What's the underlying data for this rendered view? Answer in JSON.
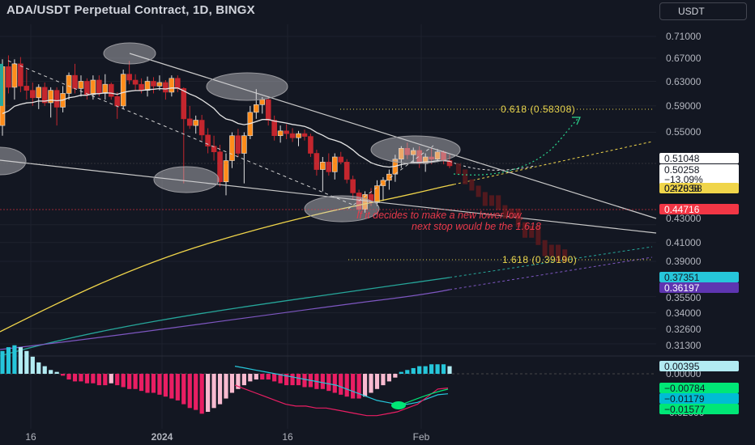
{
  "header": {
    "title": "ADA/USDT Perpetual Contract, 1D, BINGX",
    "currency_button": "USDT"
  },
  "colors": {
    "background": "#131722",
    "up": "#ff8c1a",
    "down": "#c4262e",
    "grid": "#1e222d",
    "axis_text": "#b2b5be",
    "ema_yellow": "#f0d54a",
    "ema_teal": "#26a69a",
    "ema_purple": "#7e57c2",
    "fib": "#e8d44d"
  },
  "chart_data": [
    {
      "type": "candlestick",
      "title": "ADA/USDT Perpetual Contract, 1D, BINGX",
      "price_axis_ticks": [
        "0.71000",
        "0.67000",
        "0.63000",
        "0.59000",
        "0.55000",
        "0.51048",
        "0.50258",
        "0.47838",
        "0.44716",
        "0.43000",
        "0.41000",
        "0.39000",
        "0.37351",
        "0.36197",
        "0.35500",
        "0.34000",
        "0.32600",
        "0.31300"
      ],
      "price_axis_plain_ticks": [
        "0.71000",
        "0.67000",
        "0.63000",
        "0.59000",
        "0.55000",
        "0.43000",
        "0.41000",
        "0.39000",
        "0.35500",
        "0.34000",
        "0.32600",
        "0.31300"
      ],
      "time_axis_ticks": [
        "16",
        "2024",
        "16",
        "Feb"
      ],
      "ylim": [
        0.305,
        0.73
      ],
      "grid": true,
      "candles": [
        {
          "o": 0.56,
          "h": 0.668,
          "l": 0.545,
          "c": 0.655
        },
        {
          "o": 0.655,
          "h": 0.675,
          "l": 0.61,
          "c": 0.62
        },
        {
          "o": 0.62,
          "h": 0.668,
          "l": 0.6,
          "c": 0.66
        },
        {
          "o": 0.66,
          "h": 0.672,
          "l": 0.612,
          "c": 0.622
        },
        {
          "o": 0.622,
          "h": 0.65,
          "l": 0.6,
          "c": 0.615
        },
        {
          "o": 0.615,
          "h": 0.628,
          "l": 0.59,
          "c": 0.603
        },
        {
          "o": 0.603,
          "h": 0.625,
          "l": 0.585,
          "c": 0.62
        },
        {
          "o": 0.62,
          "h": 0.628,
          "l": 0.59,
          "c": 0.595
        },
        {
          "o": 0.595,
          "h": 0.62,
          "l": 0.572,
          "c": 0.615
        },
        {
          "o": 0.615,
          "h": 0.62,
          "l": 0.56,
          "c": 0.588
        },
        {
          "o": 0.588,
          "h": 0.622,
          "l": 0.58,
          "c": 0.61
        },
        {
          "o": 0.61,
          "h": 0.645,
          "l": 0.6,
          "c": 0.64
        },
        {
          "o": 0.64,
          "h": 0.66,
          "l": 0.61,
          "c": 0.618
        },
        {
          "o": 0.618,
          "h": 0.64,
          "l": 0.605,
          "c": 0.63
        },
        {
          "o": 0.63,
          "h": 0.635,
          "l": 0.6,
          "c": 0.608
        },
        {
          "o": 0.608,
          "h": 0.64,
          "l": 0.6,
          "c": 0.632
        },
        {
          "o": 0.632,
          "h": 0.64,
          "l": 0.605,
          "c": 0.61
        },
        {
          "o": 0.61,
          "h": 0.642,
          "l": 0.6,
          "c": 0.625
        },
        {
          "o": 0.625,
          "h": 0.628,
          "l": 0.6,
          "c": 0.605
        },
        {
          "o": 0.605,
          "h": 0.612,
          "l": 0.57,
          "c": 0.59
        },
        {
          "o": 0.59,
          "h": 0.65,
          "l": 0.585,
          "c": 0.642
        },
        {
          "o": 0.642,
          "h": 0.665,
          "l": 0.625,
          "c": 0.632
        },
        {
          "o": 0.632,
          "h": 0.642,
          "l": 0.615,
          "c": 0.625
        },
        {
          "o": 0.625,
          "h": 0.635,
          "l": 0.61,
          "c": 0.615
        },
        {
          "o": 0.615,
          "h": 0.638,
          "l": 0.605,
          "c": 0.63
        },
        {
          "o": 0.63,
          "h": 0.637,
          "l": 0.61,
          "c": 0.622
        },
        {
          "o": 0.622,
          "h": 0.64,
          "l": 0.615,
          "c": 0.628
        },
        {
          "o": 0.628,
          "h": 0.632,
          "l": 0.6,
          "c": 0.612
        },
        {
          "o": 0.612,
          "h": 0.64,
          "l": 0.605,
          "c": 0.635
        },
        {
          "o": 0.635,
          "h": 0.64,
          "l": 0.612,
          "c": 0.618
        },
        {
          "o": 0.618,
          "h": 0.62,
          "l": 0.48,
          "c": 0.57
        },
        {
          "o": 0.57,
          "h": 0.59,
          "l": 0.555,
          "c": 0.56
        },
        {
          "o": 0.56,
          "h": 0.575,
          "l": 0.548,
          "c": 0.568
        },
        {
          "o": 0.568,
          "h": 0.576,
          "l": 0.538,
          "c": 0.546
        },
        {
          "o": 0.546,
          "h": 0.556,
          "l": 0.52,
          "c": 0.53
        },
        {
          "o": 0.53,
          "h": 0.545,
          "l": 0.51,
          "c": 0.522
        },
        {
          "o": 0.522,
          "h": 0.532,
          "l": 0.476,
          "c": 0.482
        },
        {
          "o": 0.482,
          "h": 0.52,
          "l": 0.465,
          "c": 0.51
        },
        {
          "o": 0.51,
          "h": 0.55,
          "l": 0.5,
          "c": 0.545
        },
        {
          "o": 0.545,
          "h": 0.555,
          "l": 0.515,
          "c": 0.52
        },
        {
          "o": 0.52,
          "h": 0.55,
          "l": 0.48,
          "c": 0.545
        },
        {
          "o": 0.545,
          "h": 0.59,
          "l": 0.54,
          "c": 0.58
        },
        {
          "o": 0.58,
          "h": 0.617,
          "l": 0.57,
          "c": 0.592
        },
        {
          "o": 0.592,
          "h": 0.604,
          "l": 0.578,
          "c": 0.6
        },
        {
          "o": 0.6,
          "h": 0.605,
          "l": 0.56,
          "c": 0.568
        },
        {
          "o": 0.568,
          "h": 0.575,
          "l": 0.538,
          "c": 0.545
        },
        {
          "o": 0.545,
          "h": 0.56,
          "l": 0.535,
          "c": 0.552
        },
        {
          "o": 0.552,
          "h": 0.562,
          "l": 0.54,
          "c": 0.548
        },
        {
          "o": 0.548,
          "h": 0.556,
          "l": 0.536,
          "c": 0.542
        },
        {
          "o": 0.542,
          "h": 0.552,
          "l": 0.53,
          "c": 0.548
        },
        {
          "o": 0.548,
          "h": 0.554,
          "l": 0.538,
          "c": 0.544
        },
        {
          "o": 0.544,
          "h": 0.548,
          "l": 0.515,
          "c": 0.52
        },
        {
          "o": 0.52,
          "h": 0.525,
          "l": 0.49,
          "c": 0.498
        },
        {
          "o": 0.498,
          "h": 0.515,
          "l": 0.47,
          "c": 0.508
        },
        {
          "o": 0.508,
          "h": 0.52,
          "l": 0.49,
          "c": 0.495
        },
        {
          "o": 0.495,
          "h": 0.52,
          "l": 0.485,
          "c": 0.515
        },
        {
          "o": 0.515,
          "h": 0.522,
          "l": 0.505,
          "c": 0.508
        },
        {
          "o": 0.508,
          "h": 0.512,
          "l": 0.48,
          "c": 0.485
        },
        {
          "o": 0.485,
          "h": 0.49,
          "l": 0.46,
          "c": 0.468
        },
        {
          "o": 0.468,
          "h": 0.472,
          "l": 0.444,
          "c": 0.448
        },
        {
          "o": 0.448,
          "h": 0.47,
          "l": 0.444,
          "c": 0.466
        },
        {
          "o": 0.466,
          "h": 0.474,
          "l": 0.452,
          "c": 0.456
        },
        {
          "o": 0.456,
          "h": 0.484,
          "l": 0.452,
          "c": 0.477
        },
        {
          "o": 0.477,
          "h": 0.488,
          "l": 0.458,
          "c": 0.484
        },
        {
          "o": 0.484,
          "h": 0.498,
          "l": 0.472,
          "c": 0.492
        },
        {
          "o": 0.492,
          "h": 0.518,
          "l": 0.482,
          "c": 0.512
        },
        {
          "o": 0.512,
          "h": 0.53,
          "l": 0.5,
          "c": 0.527
        },
        {
          "o": 0.527,
          "h": 0.535,
          "l": 0.512,
          "c": 0.518
        },
        {
          "o": 0.518,
          "h": 0.528,
          "l": 0.508,
          "c": 0.524
        },
        {
          "o": 0.524,
          "h": 0.53,
          "l": 0.5,
          "c": 0.506
        },
        {
          "o": 0.506,
          "h": 0.52,
          "l": 0.495,
          "c": 0.515
        },
        {
          "o": 0.515,
          "h": 0.528,
          "l": 0.505,
          "c": 0.512
        },
        {
          "o": 0.512,
          "h": 0.526,
          "l": 0.508,
          "c": 0.522
        },
        {
          "o": 0.522,
          "h": 0.524,
          "l": 0.505,
          "c": 0.51
        },
        {
          "o": 0.51,
          "h": 0.518,
          "l": 0.5,
          "c": 0.503
        }
      ],
      "projected_path": [
        0.503,
        0.495,
        0.482,
        0.474,
        0.466,
        0.455,
        0.462,
        0.45,
        0.44,
        0.446,
        0.43,
        0.418,
        0.426,
        0.41,
        0.398,
        0.405,
        0.392,
        0.4
      ],
      "labels": {
        "fib_upper": "0.618 (0.58308)",
        "fib_lower": "1.618 (0.39190)",
        "note_line1": "If it decides to make a new lower low,",
        "note_line2": "next stop would be the 1.618"
      },
      "price_badges": [
        {
          "value": "0.51048",
          "bg": "#ffffff",
          "fg": "#131722"
        },
        {
          "value": "0.50258",
          "bg": "#ffffff",
          "fg": "#131722",
          "sub": [
            "−13.09%",
            "02:20:58"
          ]
        },
        {
          "value": "0.47838",
          "bg": "#f0d54a",
          "fg": "#131722"
        },
        {
          "value": "0.44716",
          "bg": "#f23645",
          "fg": "#ffffff"
        },
        {
          "value": "0.37351",
          "bg": "#26c6da",
          "fg": "#131722"
        },
        {
          "value": "0.36197",
          "bg": "#5e35b1",
          "fg": "#ffffff"
        }
      ]
    },
    {
      "type": "bar",
      "title": "MACD",
      "histogram": [
        0.012,
        0.014,
        0.015,
        0.014,
        0.012,
        0.009,
        0.006,
        0.004,
        0.002,
        0.001,
        -0.001,
        -0.003,
        -0.004,
        -0.004,
        -0.005,
        -0.005,
        -0.006,
        -0.006,
        -0.005,
        -0.006,
        -0.007,
        -0.008,
        -0.008,
        -0.009,
        -0.01,
        -0.01,
        -0.011,
        -0.012,
        -0.013,
        -0.014,
        -0.016,
        -0.018,
        -0.019,
        -0.021,
        -0.02,
        -0.018,
        -0.016,
        -0.013,
        -0.01,
        -0.008,
        -0.006,
        -0.004,
        -0.003,
        -0.003,
        -0.003,
        -0.004,
        -0.005,
        -0.006,
        -0.006,
        -0.006,
        -0.007,
        -0.007,
        -0.008,
        -0.008,
        -0.009,
        -0.01,
        -0.011,
        -0.012,
        -0.013,
        -0.013,
        -0.012,
        -0.01,
        -0.008,
        -0.006,
        -0.004,
        -0.002,
        0.001,
        0.002,
        0.003,
        0.004,
        0.004,
        0.005,
        0.005,
        0.005,
        0.004
      ],
      "macd_line": [
        -0.006,
        -0.008,
        -0.01,
        -0.012,
        -0.014,
        -0.016,
        -0.017,
        -0.017,
        -0.018,
        -0.018,
        -0.019,
        -0.02,
        -0.021,
        -0.022,
        -0.022,
        -0.021,
        -0.02,
        -0.018,
        -0.016,
        -0.012,
        -0.008,
        -0.0075
      ],
      "signal_line": [
        0.004,
        0.003,
        0.002,
        0.001,
        0.0,
        -0.001,
        -0.002,
        -0.003,
        -0.004,
        -0.005,
        -0.006,
        -0.008,
        -0.01,
        -0.012,
        -0.014,
        -0.015,
        -0.016,
        -0.016,
        -0.015,
        -0.013,
        -0.011,
        -0.0105
      ],
      "axis_ticks": [
        "0.00000",
        "-0.02000"
      ],
      "ylim": [
        -0.024,
        0.018
      ],
      "badges": [
        {
          "value": "0.00395",
          "bg": "#b2ebf2",
          "fg": "#131722"
        },
        {
          "value": "−0.00784",
          "bg": "#00e676",
          "fg": "#131722"
        },
        {
          "value": "−0.01179",
          "bg": "#00bcd4",
          "fg": "#131722"
        },
        {
          "value": "−0.01577",
          "bg": "#00e676",
          "fg": "#131722"
        }
      ]
    }
  ]
}
